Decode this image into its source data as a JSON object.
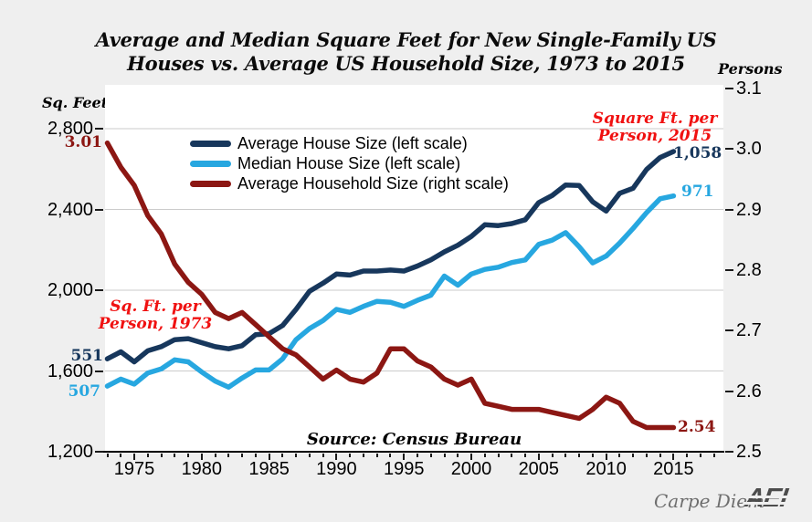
{
  "title": {
    "line1": "Average and Median Square Feet for New Single-Family US",
    "line2": "Houses vs. Average US Household Size, 1973 to 2015"
  },
  "axes": {
    "left": {
      "title": "Sq. Feet",
      "tick_labels": [
        "2,800",
        "2,400",
        "2,000",
        "1,600",
        "1,200"
      ],
      "tick_values": [
        2800,
        2400,
        2000,
        1600,
        1200
      ]
    },
    "right": {
      "title": "Persons",
      "tick_labels": [
        "3.1",
        "3.0",
        "2.9",
        "2.8",
        "2.7",
        "2.6",
        "2.5"
      ],
      "tick_values": [
        3.1,
        3.0,
        2.9,
        2.8,
        2.7,
        2.6,
        2.5
      ]
    },
    "x": {
      "labels": [
        "1975",
        "1980",
        "1985",
        "1990",
        "1995",
        "2000",
        "2005",
        "2010",
        "2015"
      ],
      "label_years": [
        1975,
        1980,
        1985,
        1990,
        1995,
        2000,
        2005,
        2010,
        2015
      ],
      "minor_tick_first_year": 1973,
      "minor_tick_last_year": 2018
    }
  },
  "legend": [
    {
      "label": "Average House Size (left scale)",
      "color": "#17375C"
    },
    {
      "label": "Median House Size (left scale)",
      "color": "#27A7E0"
    },
    {
      "label": "Average Household Size (right scale)",
      "color": "#8C1713"
    }
  ],
  "annotations": {
    "hh_1973": {
      "text": "3.01",
      "color": "#8C1713"
    },
    "avg_1973": {
      "text": "551",
      "color": "#17375C"
    },
    "med_1973": {
      "text": "507",
      "color": "#27A7E0"
    },
    "avg_2015": {
      "text": "1,058",
      "color": "#17375C"
    },
    "med_2015": {
      "text": "971",
      "color": "#27A7E0"
    },
    "hh_2015": {
      "text": "2.54",
      "color": "#8C1713"
    },
    "callout_1973_line1": {
      "text": "Sq. Ft. per",
      "color": "#F01111"
    },
    "callout_1973_line2": {
      "text": "Person, 1973",
      "color": "#F01111"
    },
    "callout_2015_line1": {
      "text": "Square Ft. per",
      "color": "#F01111"
    },
    "callout_2015_line2": {
      "text": "Person, 2015",
      "color": "#F01111"
    }
  },
  "source": "Source: Census Bureau",
  "footer": {
    "credit": "Carpe Diem",
    "logo": "AEI"
  },
  "colors": {
    "background": "#EFEFEF",
    "plot_background": "#FFFFFF",
    "gridline": "#CBCBCB",
    "navy": "#17375C",
    "light_blue": "#27A7E0",
    "dark_red": "#8C1713",
    "bright_red": "#F01111"
  },
  "chart_data": {
    "type": "line",
    "title": "Average and Median Square Feet for New Single-Family US Houses vs. Average US Household Size, 1973 to 2015",
    "x": [
      1973,
      1974,
      1975,
      1976,
      1977,
      1978,
      1979,
      1980,
      1981,
      1982,
      1983,
      1984,
      1985,
      1986,
      1987,
      1988,
      1989,
      1990,
      1991,
      1992,
      1993,
      1994,
      1995,
      1996,
      1997,
      1998,
      1999,
      2000,
      2001,
      2002,
      2003,
      2004,
      2005,
      2006,
      2007,
      2008,
      2009,
      2010,
      2011,
      2012,
      2013,
      2014,
      2015
    ],
    "series": [
      {
        "name": "Average House Size (left scale)",
        "axis": "left",
        "color": "#17375C",
        "values": [
          1660,
          1695,
          1645,
          1700,
          1720,
          1755,
          1760,
          1740,
          1720,
          1710,
          1725,
          1780,
          1785,
          1825,
          1905,
          1995,
          2035,
          2080,
          2075,
          2095,
          2095,
          2100,
          2095,
          2120,
          2150,
          2190,
          2223,
          2266,
          2324,
          2320,
          2330,
          2349,
          2434,
          2469,
          2521,
          2519,
          2438,
          2392,
          2480,
          2505,
          2598,
          2657,
          2687
        ]
      },
      {
        "name": "Median House Size (left scale)",
        "axis": "left",
        "color": "#27A7E0",
        "values": [
          1525,
          1560,
          1535,
          1590,
          1610,
          1655,
          1645,
          1595,
          1550,
          1520,
          1565,
          1605,
          1605,
          1660,
          1755,
          1810,
          1850,
          1905,
          1890,
          1920,
          1945,
          1940,
          1920,
          1950,
          1975,
          2070,
          2025,
          2080,
          2103,
          2114,
          2137,
          2150,
          2227,
          2248,
          2285,
          2215,
          2135,
          2169,
          2233,
          2306,
          2384,
          2453,
          2467
        ]
      },
      {
        "name": "Average Household Size (right scale)",
        "axis": "right",
        "color": "#8C1713",
        "values": [
          3.01,
          2.97,
          2.94,
          2.89,
          2.86,
          2.81,
          2.78,
          2.76,
          2.73,
          2.72,
          2.73,
          2.71,
          2.69,
          2.67,
          2.66,
          2.64,
          2.62,
          2.635,
          2.62,
          2.615,
          2.63,
          2.67,
          2.67,
          2.65,
          2.64,
          2.62,
          2.61,
          2.62,
          2.58,
          2.575,
          2.57,
          2.57,
          2.57,
          2.565,
          2.56,
          2.555,
          2.57,
          2.59,
          2.58,
          2.55,
          2.54,
          2.54,
          2.54
        ]
      }
    ],
    "left_axis": {
      "label": "Sq. Feet",
      "min": 1200,
      "max": 2800,
      "tick_step": 400
    },
    "right_axis": {
      "label": "Persons",
      "min": 2.5,
      "max": 3.1,
      "tick_step": 0.1
    },
    "grid": "horizontal gridlines at left-axis ticks 1600/2000/2400/2800",
    "legend_position": "inside-top-left"
  }
}
